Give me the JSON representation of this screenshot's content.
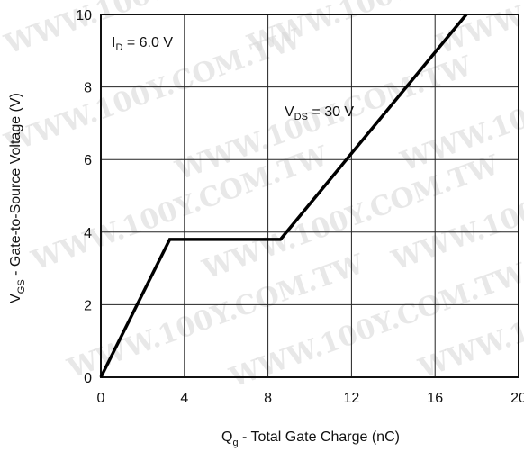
{
  "chart_data": {
    "type": "line",
    "xlabel": {
      "main": "Q",
      "sub": "g",
      "rest": " - Total Gate Charge (nC)"
    },
    "ylabel": {
      "main": "V",
      "sub": "GS",
      "rest": " - Gate-to-Source Voltage (V)"
    },
    "xlim": [
      0,
      20
    ],
    "ylim": [
      0,
      10
    ],
    "xticks": [
      "0",
      "4",
      "8",
      "12",
      "16",
      "20"
    ],
    "yticks": [
      "0",
      "2",
      "4",
      "6",
      "8",
      "10"
    ],
    "grid": true,
    "series": [
      {
        "x": [
          0,
          3.3,
          8.6,
          17.5
        ],
        "y": [
          0,
          3.8,
          3.8,
          10
        ]
      }
    ],
    "annotations": [
      {
        "main": "I",
        "sub": "D",
        "rest": " = 6.0 V"
      },
      {
        "main": "V",
        "sub": "DS",
        "rest": " = 30 V"
      }
    ]
  },
  "watermark": "WWW.100Y.COM.TW"
}
